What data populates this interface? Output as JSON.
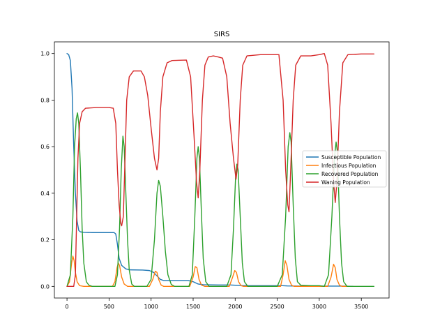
{
  "chart_data": {
    "type": "line",
    "title": "SIRS",
    "xlabel": "",
    "ylabel": "",
    "xlim": [
      -150,
      3830
    ],
    "ylim": [
      -0.05,
      1.05
    ],
    "x_ticks": [
      0,
      500,
      1000,
      1500,
      2000,
      2500,
      3000,
      3500
    ],
    "x_tick_labels": [
      "0",
      "500",
      "1000",
      "1500",
      "2000",
      "2500",
      "3000",
      "3500"
    ],
    "y_ticks": [
      0.0,
      0.2,
      0.4,
      0.6,
      0.8,
      1.0
    ],
    "y_tick_labels": [
      "0.0",
      "0.2",
      "0.4",
      "0.6",
      "0.8",
      "1.0"
    ],
    "grid": false,
    "legend_position": "center-right",
    "series": [
      {
        "name": "Susceptible Population",
        "color": "#1f77b4",
        "points": [
          [
            0,
            1.0
          ],
          [
            20,
            0.995
          ],
          [
            40,
            0.97
          ],
          [
            60,
            0.85
          ],
          [
            80,
            0.6
          ],
          [
            100,
            0.4
          ],
          [
            120,
            0.28
          ],
          [
            140,
            0.24
          ],
          [
            160,
            0.234
          ],
          [
            200,
            0.232
          ],
          [
            300,
            0.231
          ],
          [
            450,
            0.231
          ],
          [
            560,
            0.231
          ],
          [
            580,
            0.225
          ],
          [
            600,
            0.18
          ],
          [
            620,
            0.12
          ],
          [
            650,
            0.09
          ],
          [
            700,
            0.075
          ],
          [
            750,
            0.071
          ],
          [
            900,
            0.07
          ],
          [
            980,
            0.068
          ],
          [
            1030,
            0.06
          ],
          [
            1070,
            0.045
          ],
          [
            1110,
            0.03
          ],
          [
            1150,
            0.025
          ],
          [
            1300,
            0.025
          ],
          [
            1440,
            0.025
          ],
          [
            1500,
            0.02
          ],
          [
            1560,
            0.01
          ],
          [
            1620,
            0.007
          ],
          [
            1800,
            0.006
          ],
          [
            1940,
            0.006
          ],
          [
            2000,
            0.005
          ],
          [
            2100,
            0.003
          ],
          [
            2400,
            0.003
          ],
          [
            2560,
            0.003
          ],
          [
            2620,
            0.002
          ],
          [
            2800,
            0.001
          ],
          [
            3000,
            0.001
          ],
          [
            3300,
            0.001
          ],
          [
            3400,
            0.0
          ]
        ]
      },
      {
        "name": "Infectious Population",
        "color": "#ff7f0e",
        "points": [
          [
            0,
            0.0
          ],
          [
            30,
            0.02
          ],
          [
            55,
            0.1
          ],
          [
            70,
            0.13
          ],
          [
            85,
            0.11
          ],
          [
            100,
            0.06
          ],
          [
            120,
            0.02
          ],
          [
            150,
            0.003
          ],
          [
            200,
            0.0
          ],
          [
            540,
            0.0
          ],
          [
            570,
            0.02
          ],
          [
            595,
            0.08
          ],
          [
            610,
            0.1
          ],
          [
            625,
            0.09
          ],
          [
            650,
            0.04
          ],
          [
            680,
            0.01
          ],
          [
            720,
            0.0
          ],
          [
            980,
            0.0
          ],
          [
            1020,
            0.03
          ],
          [
            1050,
            0.065
          ],
          [
            1070,
            0.06
          ],
          [
            1090,
            0.03
          ],
          [
            1120,
            0.005
          ],
          [
            1150,
            0.0
          ],
          [
            1460,
            0.0
          ],
          [
            1500,
            0.04
          ],
          [
            1525,
            0.085
          ],
          [
            1545,
            0.08
          ],
          [
            1570,
            0.03
          ],
          [
            1600,
            0.005
          ],
          [
            1640,
            0.0
          ],
          [
            1930,
            0.0
          ],
          [
            1970,
            0.04
          ],
          [
            1995,
            0.068
          ],
          [
            2015,
            0.06
          ],
          [
            2040,
            0.02
          ],
          [
            2070,
            0.003
          ],
          [
            2100,
            0.0
          ],
          [
            2540,
            0.0
          ],
          [
            2570,
            0.05
          ],
          [
            2595,
            0.11
          ],
          [
            2615,
            0.09
          ],
          [
            2640,
            0.03
          ],
          [
            2670,
            0.005
          ],
          [
            2700,
            0.0
          ],
          [
            3100,
            0.0
          ],
          [
            3140,
            0.04
          ],
          [
            3170,
            0.095
          ],
          [
            3190,
            0.08
          ],
          [
            3210,
            0.03
          ],
          [
            3240,
            0.005
          ],
          [
            3270,
            0.0
          ],
          [
            3350,
            0.0
          ]
        ]
      },
      {
        "name": "Recovered Population",
        "color": "#2ca02c",
        "points": [
          [
            0,
            0.0
          ],
          [
            40,
            0.05
          ],
          [
            70,
            0.3
          ],
          [
            90,
            0.6
          ],
          [
            110,
            0.72
          ],
          [
            125,
            0.745
          ],
          [
            140,
            0.7
          ],
          [
            160,
            0.5
          ],
          [
            180,
            0.25
          ],
          [
            200,
            0.1
          ],
          [
            230,
            0.02
          ],
          [
            260,
            0.005
          ],
          [
            300,
            0.0
          ],
          [
            570,
            0.0
          ],
          [
            600,
            0.05
          ],
          [
            625,
            0.25
          ],
          [
            645,
            0.5
          ],
          [
            665,
            0.645
          ],
          [
            680,
            0.6
          ],
          [
            700,
            0.4
          ],
          [
            720,
            0.2
          ],
          [
            740,
            0.07
          ],
          [
            770,
            0.01
          ],
          [
            800,
            0.0
          ],
          [
            950,
            0.0
          ],
          [
            1000,
            0.03
          ],
          [
            1040,
            0.2
          ],
          [
            1070,
            0.4
          ],
          [
            1090,
            0.455
          ],
          [
            1110,
            0.43
          ],
          [
            1140,
            0.3
          ],
          [
            1170,
            0.15
          ],
          [
            1200,
            0.05
          ],
          [
            1240,
            0.008
          ],
          [
            1280,
            0.0
          ],
          [
            1450,
            0.0
          ],
          [
            1490,
            0.05
          ],
          [
            1520,
            0.3
          ],
          [
            1545,
            0.55
          ],
          [
            1560,
            0.6
          ],
          [
            1575,
            0.55
          ],
          [
            1600,
            0.3
          ],
          [
            1620,
            0.12
          ],
          [
            1650,
            0.02
          ],
          [
            1690,
            0.0
          ],
          [
            1900,
            0.0
          ],
          [
            1950,
            0.05
          ],
          [
            1980,
            0.25
          ],
          [
            2005,
            0.47
          ],
          [
            2020,
            0.525
          ],
          [
            2035,
            0.5
          ],
          [
            2060,
            0.3
          ],
          [
            2085,
            0.1
          ],
          [
            2110,
            0.02
          ],
          [
            2150,
            0.0
          ],
          [
            2500,
            0.0
          ],
          [
            2560,
            0.05
          ],
          [
            2600,
            0.3
          ],
          [
            2630,
            0.6
          ],
          [
            2650,
            0.66
          ],
          [
            2665,
            0.62
          ],
          [
            2690,
            0.35
          ],
          [
            2715,
            0.12
          ],
          [
            2740,
            0.02
          ],
          [
            2780,
            0.005
          ],
          [
            2900,
            0.003
          ],
          [
            3000,
            0.003
          ],
          [
            3060,
            0.0
          ],
          [
            3110,
            0.05
          ],
          [
            3150,
            0.3
          ],
          [
            3180,
            0.55
          ],
          [
            3200,
            0.62
          ],
          [
            3215,
            0.58
          ],
          [
            3240,
            0.3
          ],
          [
            3265,
            0.1
          ],
          [
            3290,
            0.02
          ],
          [
            3330,
            0.0
          ],
          [
            3650,
            0.0
          ]
        ]
      },
      {
        "name": "Waning Population",
        "color": "#d62728",
        "points": [
          [
            0,
            0.0
          ],
          [
            80,
            0.0
          ],
          [
            100,
            0.05
          ],
          [
            115,
            0.3
          ],
          [
            130,
            0.55
          ],
          [
            150,
            0.7
          ],
          [
            180,
            0.75
          ],
          [
            220,
            0.765
          ],
          [
            350,
            0.768
          ],
          [
            500,
            0.768
          ],
          [
            550,
            0.765
          ],
          [
            580,
            0.7
          ],
          [
            600,
            0.5
          ],
          [
            620,
            0.35
          ],
          [
            640,
            0.27
          ],
          [
            650,
            0.26
          ],
          [
            670,
            0.3
          ],
          [
            690,
            0.55
          ],
          [
            710,
            0.8
          ],
          [
            740,
            0.9
          ],
          [
            790,
            0.925
          ],
          [
            880,
            0.925
          ],
          [
            920,
            0.9
          ],
          [
            960,
            0.82
          ],
          [
            1000,
            0.68
          ],
          [
            1040,
            0.55
          ],
          [
            1070,
            0.5
          ],
          [
            1090,
            0.55
          ],
          [
            1110,
            0.75
          ],
          [
            1140,
            0.9
          ],
          [
            1190,
            0.96
          ],
          [
            1250,
            0.97
          ],
          [
            1420,
            0.972
          ],
          [
            1470,
            0.9
          ],
          [
            1510,
            0.65
          ],
          [
            1540,
            0.45
          ],
          [
            1560,
            0.38
          ],
          [
            1580,
            0.5
          ],
          [
            1610,
            0.8
          ],
          [
            1640,
            0.95
          ],
          [
            1680,
            0.985
          ],
          [
            1740,
            0.99
          ],
          [
            1800,
            0.985
          ],
          [
            1850,
            0.98
          ],
          [
            1900,
            0.9
          ],
          [
            1940,
            0.7
          ],
          [
            1980,
            0.55
          ],
          [
            2010,
            0.46
          ],
          [
            2030,
            0.52
          ],
          [
            2060,
            0.8
          ],
          [
            2090,
            0.95
          ],
          [
            2140,
            0.99
          ],
          [
            2300,
            0.995
          ],
          [
            2520,
            0.995
          ],
          [
            2570,
            0.8
          ],
          [
            2600,
            0.5
          ],
          [
            2625,
            0.35
          ],
          [
            2640,
            0.32
          ],
          [
            2660,
            0.5
          ],
          [
            2690,
            0.8
          ],
          [
            2720,
            0.95
          ],
          [
            2780,
            0.99
          ],
          [
            2900,
            0.99
          ],
          [
            3000,
            0.995
          ],
          [
            3060,
            1.0
          ],
          [
            3100,
            0.95
          ],
          [
            3140,
            0.7
          ],
          [
            3170,
            0.45
          ],
          [
            3190,
            0.36
          ],
          [
            3210,
            0.45
          ],
          [
            3240,
            0.75
          ],
          [
            3280,
            0.96
          ],
          [
            3340,
            0.995
          ],
          [
            3500,
            0.998
          ],
          [
            3650,
            0.998
          ]
        ]
      }
    ]
  }
}
